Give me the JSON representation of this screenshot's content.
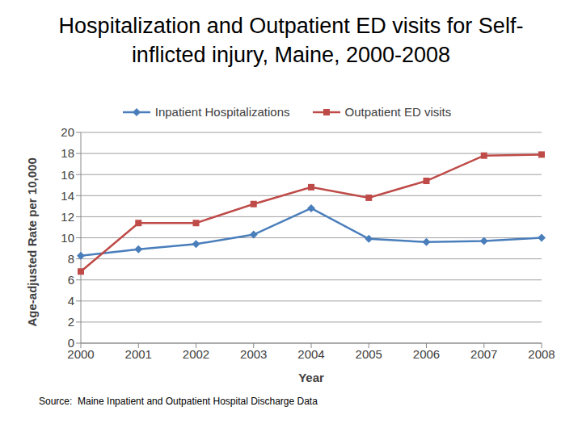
{
  "chart_data": {
    "type": "line",
    "title": "Hospitalization and Outpatient ED visits for Self-inflicted injury, Maine, 2000-2008",
    "x_label": "Year",
    "y_label": "Age-adjusted Rate per 10,000",
    "annotations": [
      "Source:  Maine Inpatient and Outpatient Hospital Discharge Data"
    ],
    "categories": [
      "2000",
      "2001",
      "2002",
      "2003",
      "2004",
      "2005",
      "2006",
      "2007",
      "2008"
    ],
    "series": [
      {
        "name": "Inpatient Hospitalizations",
        "color": "#4a7ebb",
        "marker": "diamond",
        "values": [
          8.3,
          8.9,
          9.4,
          10.3,
          12.8,
          9.9,
          9.6,
          9.7,
          10.0
        ]
      },
      {
        "name": "Outpatient ED visits",
        "color": "#be4b48",
        "marker": "square",
        "values": [
          6.8,
          11.4,
          11.4,
          13.2,
          14.8,
          13.8,
          15.4,
          17.8,
          17.9
        ]
      }
    ],
    "ylim": [
      0,
      20
    ],
    "yticks": [
      0,
      2,
      4,
      6,
      8,
      10,
      12,
      14,
      16,
      18,
      20
    ],
    "grid": true,
    "legend": "top"
  }
}
